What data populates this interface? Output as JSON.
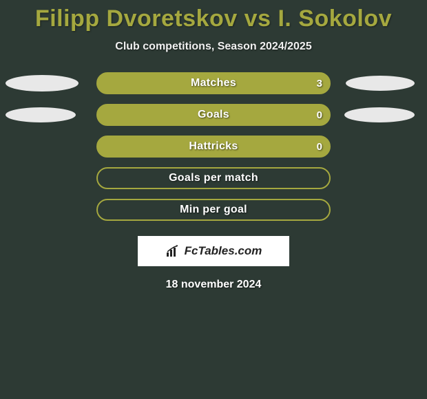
{
  "title": "Filipp Dvoretskov vs I. Sokolov",
  "subtitle": "Club competitions, Season 2024/2025",
  "date": "18 november 2024",
  "badge": {
    "text": "FcTables.com"
  },
  "colors": {
    "background": "#2d3a34",
    "title": "#a5a83f",
    "bar_fill": "#a5a83f",
    "bar_border": "#a5a83f",
    "bar_hollow_fill": "#2d3a34",
    "ellipse": "#e8e8e8",
    "text": "#ffffff"
  },
  "bars": [
    {
      "label": "Matches",
      "right_value": "3",
      "filled": true,
      "ellipse_left": {
        "width": 106,
        "height": 24
      },
      "ellipse_right": {
        "width": 100,
        "height": 22
      }
    },
    {
      "label": "Goals",
      "right_value": "0",
      "filled": true,
      "ellipse_left": {
        "width": 102,
        "height": 22
      },
      "ellipse_right": {
        "width": 102,
        "height": 22
      }
    },
    {
      "label": "Hattricks",
      "right_value": "0",
      "filled": true,
      "ellipse_left": null,
      "ellipse_right": null
    },
    {
      "label": "Goals per match",
      "right_value": null,
      "filled": false,
      "ellipse_left": null,
      "ellipse_right": null
    },
    {
      "label": "Min per goal",
      "right_value": null,
      "filled": false,
      "ellipse_left": null,
      "ellipse_right": null
    }
  ]
}
